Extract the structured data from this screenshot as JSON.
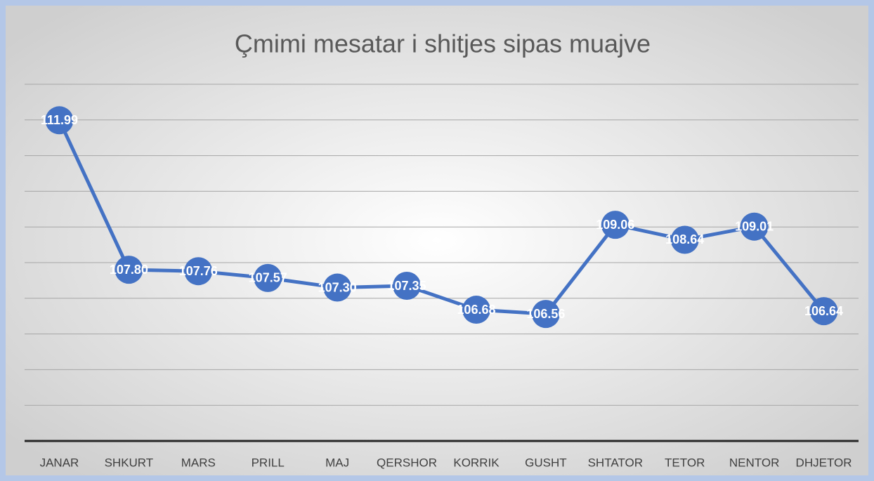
{
  "chart_data": {
    "type": "line",
    "title": "Çmimi mesatar i shitjes sipas muajve",
    "categories": [
      "JANAR",
      "SHKURT",
      "MARS",
      "PRILL",
      "MAJ",
      "QERSHOR",
      "KORRIK",
      "GUSHT",
      "SHTATOR",
      "TETOR",
      "NENTOR",
      "DHJETOR"
    ],
    "series": [
      {
        "name": "Çmimi mesatar",
        "color": "#4472c4",
        "values": [
          111.99,
          107.8,
          107.76,
          107.57,
          107.3,
          107.35,
          106.68,
          106.56,
          109.06,
          108.64,
          109.01,
          106.64
        ],
        "value_labels": [
          "111.99",
          "107.80",
          "107.76",
          "107.57",
          "107.30",
          "107.35",
          "106.68",
          "106.56",
          "109.06",
          "108.64",
          "109.01",
          "106.64"
        ]
      }
    ],
    "ylim": [
      103,
      113
    ],
    "yticks": [
      103,
      104,
      105,
      106,
      107,
      108,
      109,
      110,
      111,
      112,
      113
    ],
    "grid": true
  }
}
